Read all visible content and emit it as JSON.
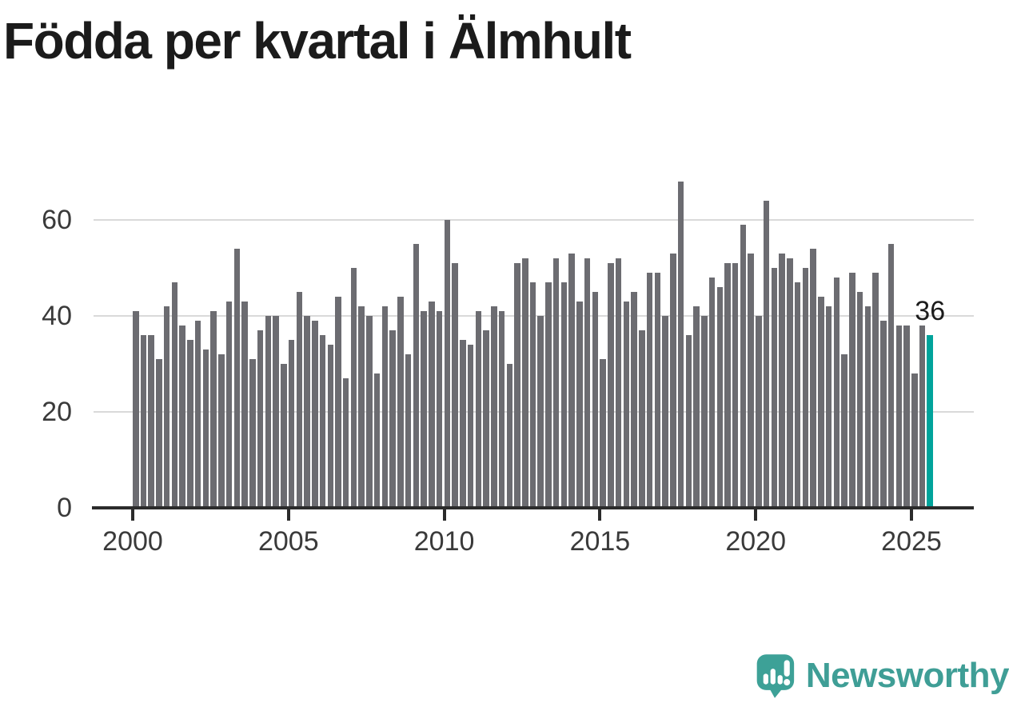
{
  "title": "Födda per kvartal i Älmhult",
  "annotation": {
    "last_value_label": "36"
  },
  "logo": {
    "text": "Newsworthy",
    "icon": "speech-bubble-bar-chart-icon"
  },
  "colors": {
    "bar": "#6c6c71",
    "highlight": "#00a39b",
    "grid": "#d9d9d9",
    "axis": "#2b2b2b",
    "tick_text": "#3a3a3a",
    "title_text": "#1b1b1b",
    "logo_teal": "#3da197"
  },
  "chart_data": {
    "type": "bar",
    "title": "Födda per kvartal i Älmhult",
    "xlabel": "",
    "ylabel": "",
    "ylim": [
      0,
      70
    ],
    "y_ticks": [
      0,
      20,
      40,
      60
    ],
    "grid": "horizontal",
    "legend": "none",
    "x_frequency": "quarterly",
    "x_tick_labels": [
      "2000",
      "2005",
      "2010",
      "2015",
      "2020",
      "2025"
    ],
    "values_by_year": {
      "2000": [
        41,
        36,
        36,
        31
      ],
      "2001": [
        42,
        47,
        38,
        35
      ],
      "2002": [
        39,
        33,
        41,
        32
      ],
      "2003": [
        43,
        54,
        43,
        31
      ],
      "2004": [
        37,
        40,
        40,
        30
      ],
      "2005": [
        35,
        45,
        40,
        39
      ],
      "2006": [
        36,
        34,
        44,
        27
      ],
      "2007": [
        50,
        42,
        40,
        28
      ],
      "2008": [
        42,
        37,
        44,
        32
      ],
      "2009": [
        55,
        41,
        43,
        41
      ],
      "2010": [
        60,
        51,
        35,
        34
      ],
      "2011": [
        41,
        37,
        42,
        41
      ],
      "2012": [
        30,
        51,
        52,
        47
      ],
      "2013": [
        40,
        47,
        52,
        47
      ],
      "2014": [
        53,
        43,
        52,
        45
      ],
      "2015": [
        31,
        51,
        52,
        43
      ],
      "2016": [
        45,
        37,
        49,
        49
      ],
      "2017": [
        40,
        53,
        68,
        36
      ],
      "2018": [
        42,
        40,
        48,
        46
      ],
      "2019": [
        51,
        51,
        59,
        53
      ],
      "2020": [
        40,
        64,
        50,
        53
      ],
      "2021": [
        52,
        47,
        50,
        54
      ],
      "2022": [
        44,
        42,
        48,
        32
      ],
      "2023": [
        49,
        45,
        42,
        49
      ],
      "2024": [
        39,
        55,
        38,
        38
      ],
      "2025": [
        28,
        38,
        36
      ]
    },
    "highlight_last_bar": true,
    "last_bar_label": "36"
  }
}
